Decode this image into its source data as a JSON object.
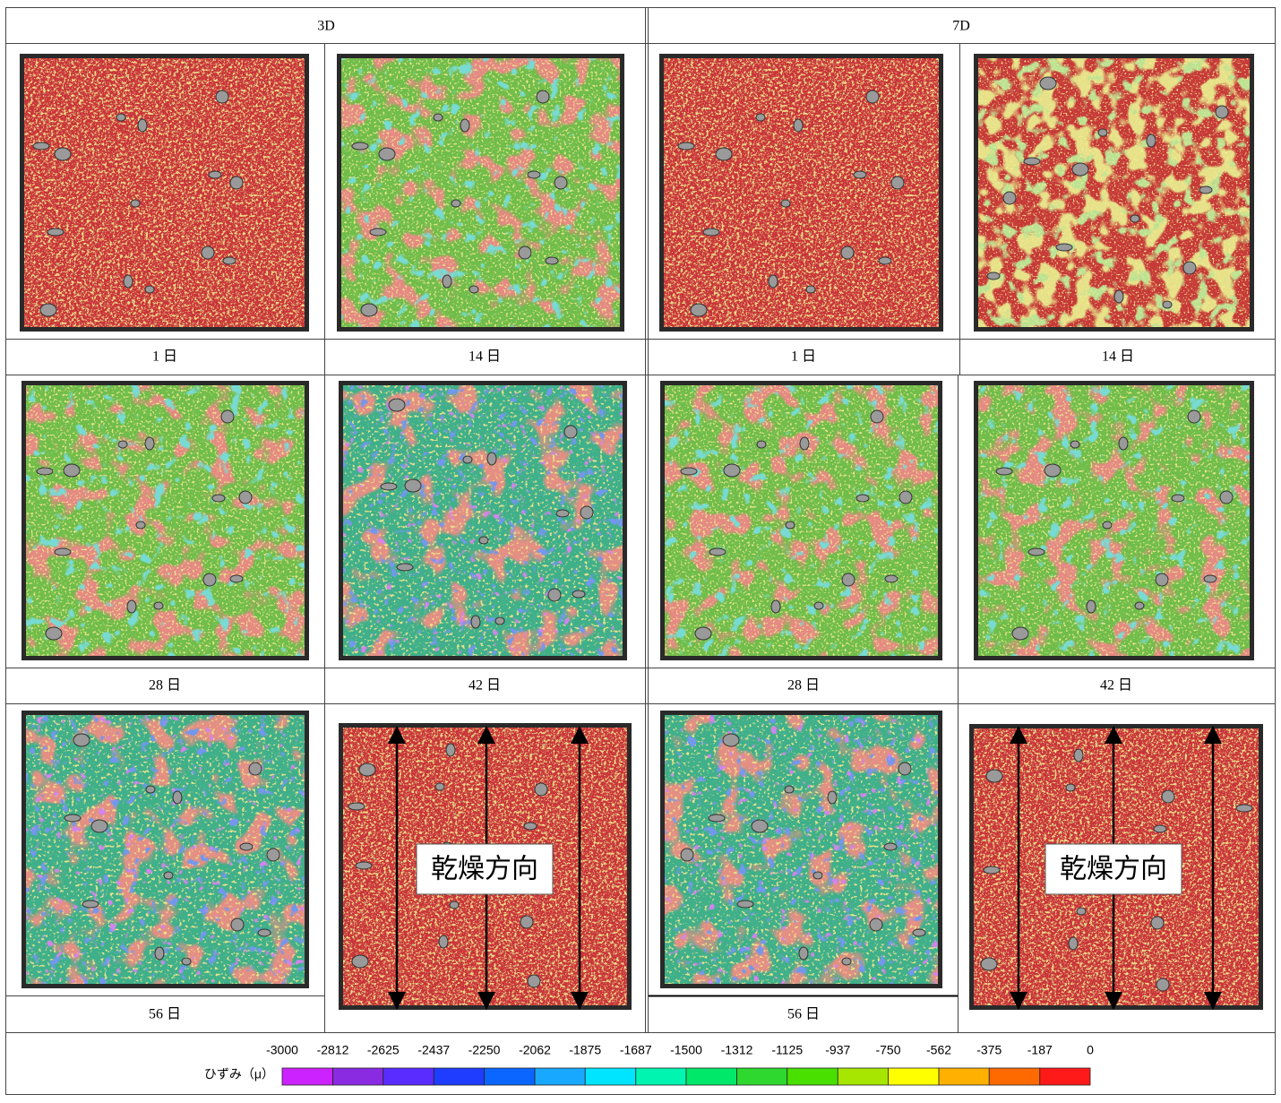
{
  "groups": [
    {
      "title": "3D",
      "captions": [
        "1 日",
        "14 日",
        "28 日",
        "42 日",
        "56 日"
      ],
      "annotation": "乾燥方向"
    },
    {
      "title": "7D",
      "captions": [
        "1 日",
        "14 日",
        "28 日",
        "42 日",
        "56 日"
      ],
      "annotation": "乾燥方向"
    }
  ],
  "legend": {
    "label": "ひずみ（μ）",
    "ticks": [
      -3000,
      -2812,
      -2625,
      -2437,
      -2250,
      -2062,
      -1875,
      -1687,
      -1500,
      -1312,
      -1125,
      -937,
      -750,
      -562,
      -375,
      -187,
      0
    ],
    "colors": [
      "#cc22ff",
      "#8a2be2",
      "#5a2cff",
      "#1f3dff",
      "#0a66ff",
      "#19a8ff",
      "#00e5ff",
      "#00f5b0",
      "#00e86a",
      "#2fd82f",
      "#49e000",
      "#a6e600",
      "#ffff00",
      "#ffb000",
      "#ff6a00",
      "#ff1a1a"
    ]
  }
}
